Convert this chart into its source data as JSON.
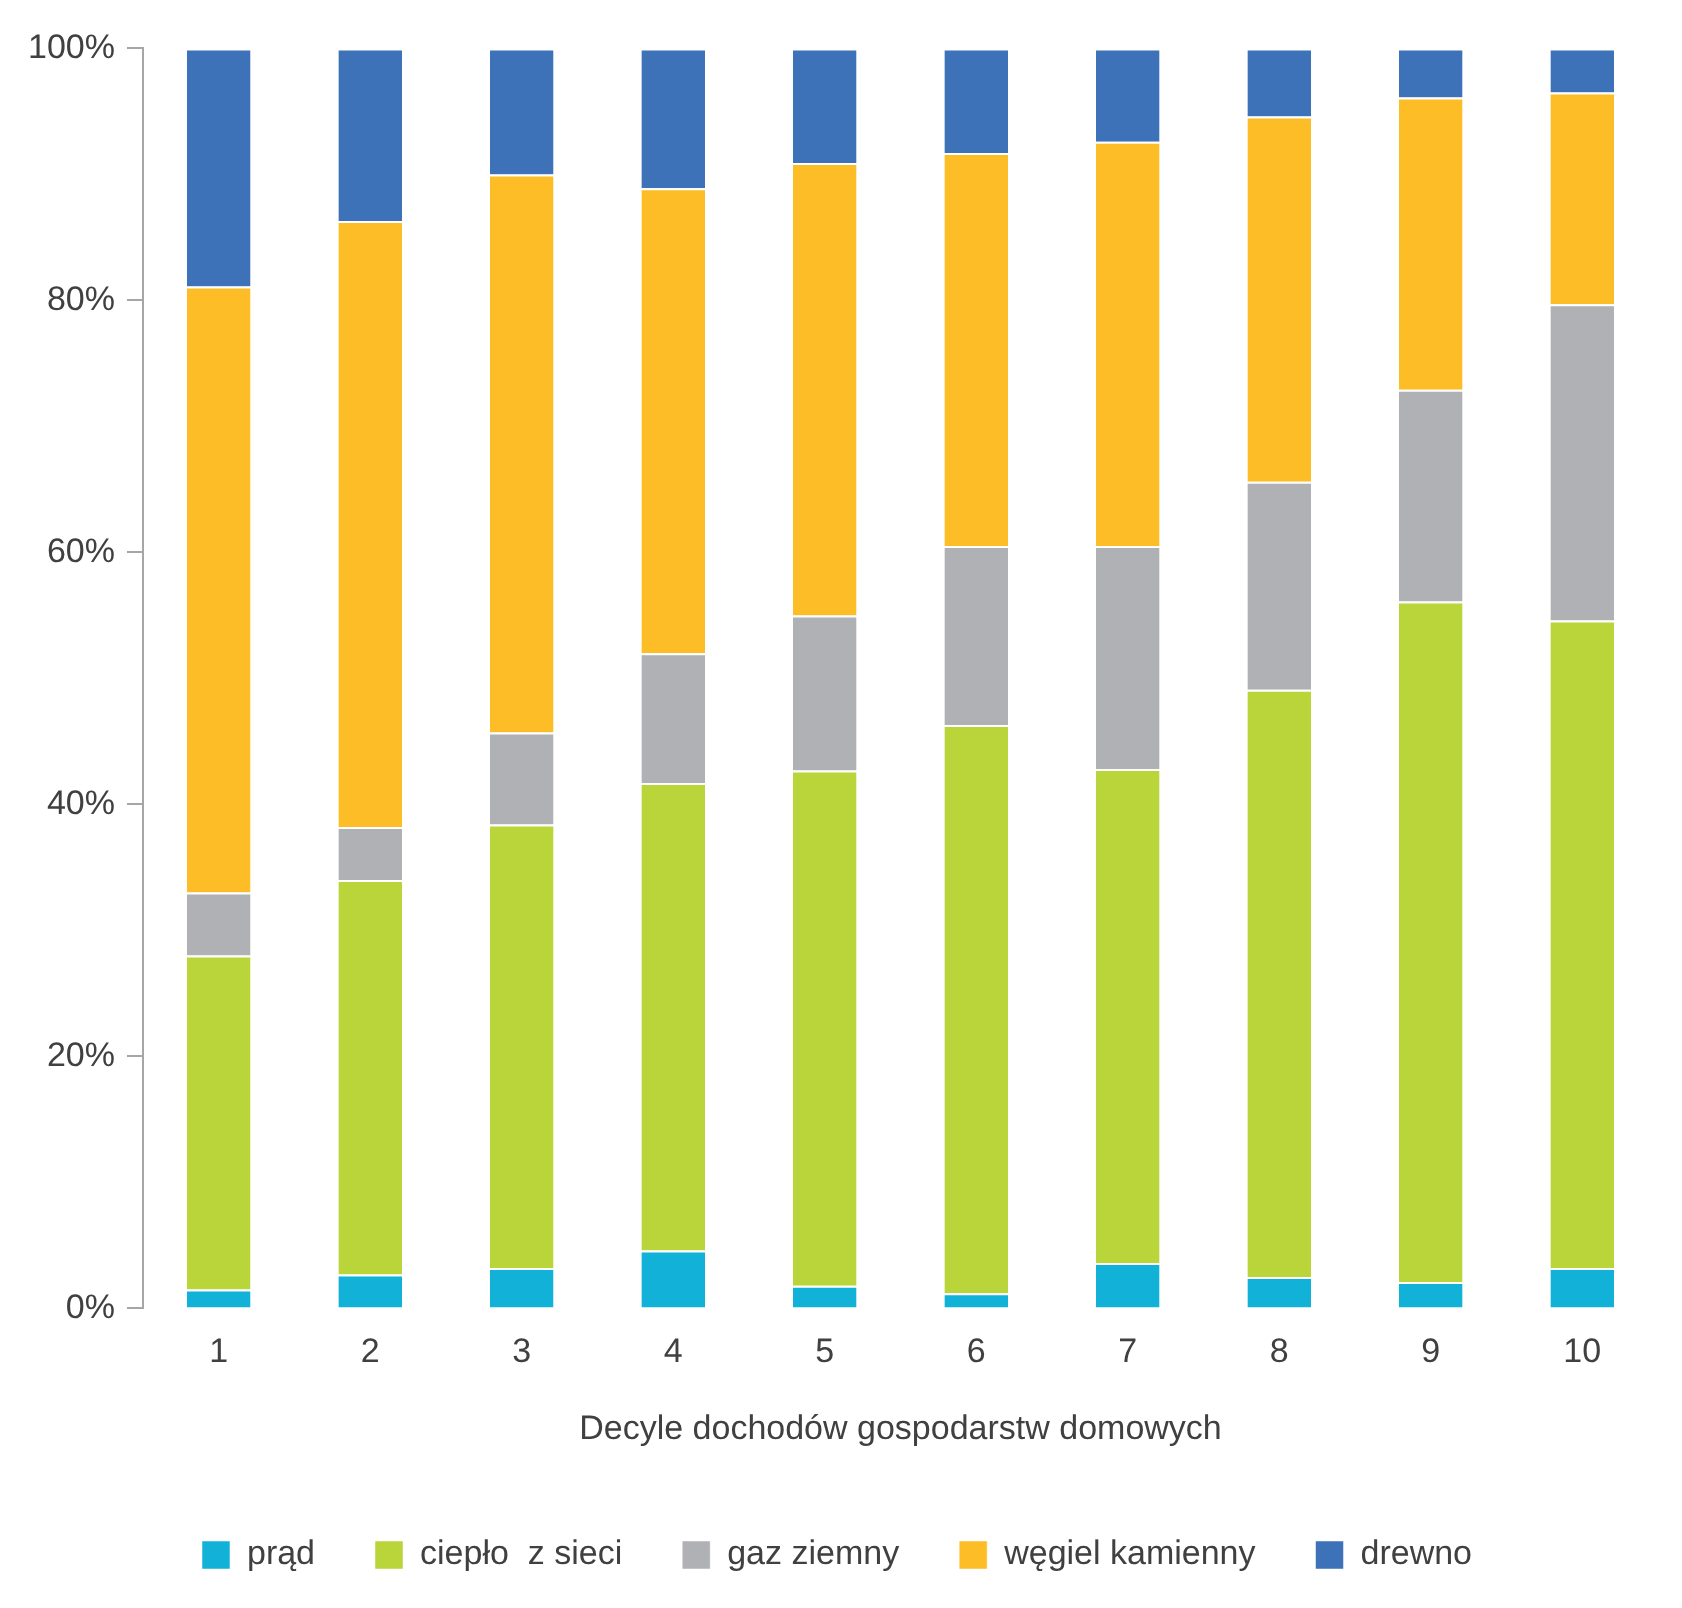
{
  "chart_data": {
    "type": "bar",
    "stacked": true,
    "xlabel": "Decyle dochodów gospodarstw domowych",
    "categories": [
      "1",
      "2",
      "3",
      "4",
      "5",
      "6",
      "7",
      "8",
      "9",
      "10"
    ],
    "series": [
      {
        "name": "prąd",
        "color": "#12b2d8",
        "values": [
          1.5,
          2.7,
          3.2,
          4.6,
          1.8,
          1.2,
          3.6,
          2.5,
          2.1,
          3.2
        ]
      },
      {
        "name": "ciepło  z sieci",
        "color": "#b9d53a",
        "values": [
          26.5,
          31.3,
          35.2,
          37.1,
          40.9,
          45.1,
          39.2,
          46.6,
          54.0,
          51.4
        ]
      },
      {
        "name": "gaz ziemny",
        "color": "#b0b1b4",
        "values": [
          5.0,
          4.2,
          7.3,
          10.3,
          12.3,
          14.2,
          17.7,
          16.5,
          16.8,
          25.1
        ]
      },
      {
        "name": "węgiel kamienny",
        "color": "#fdbd27",
        "values": [
          48.1,
          48.1,
          44.3,
          36.9,
          35.9,
          31.2,
          32.1,
          29.0,
          23.2,
          16.8
        ]
      },
      {
        "name": "drewno",
        "color": "#3d71b8",
        "values": [
          18.9,
          13.7,
          10.0,
          11.1,
          9.1,
          8.3,
          7.4,
          5.4,
          3.9,
          3.5
        ]
      }
    ],
    "ylim": [
      0,
      100
    ],
    "yticks": [
      {
        "value": 0,
        "label": "0%"
      },
      {
        "value": 20,
        "label": "20%"
      },
      {
        "value": 40,
        "label": "40%"
      },
      {
        "value": 60,
        "label": "60%"
      },
      {
        "value": 80,
        "label": "80%"
      },
      {
        "value": 100,
        "label": "100%"
      }
    ],
    "grid": false,
    "legend": "bottom"
  }
}
